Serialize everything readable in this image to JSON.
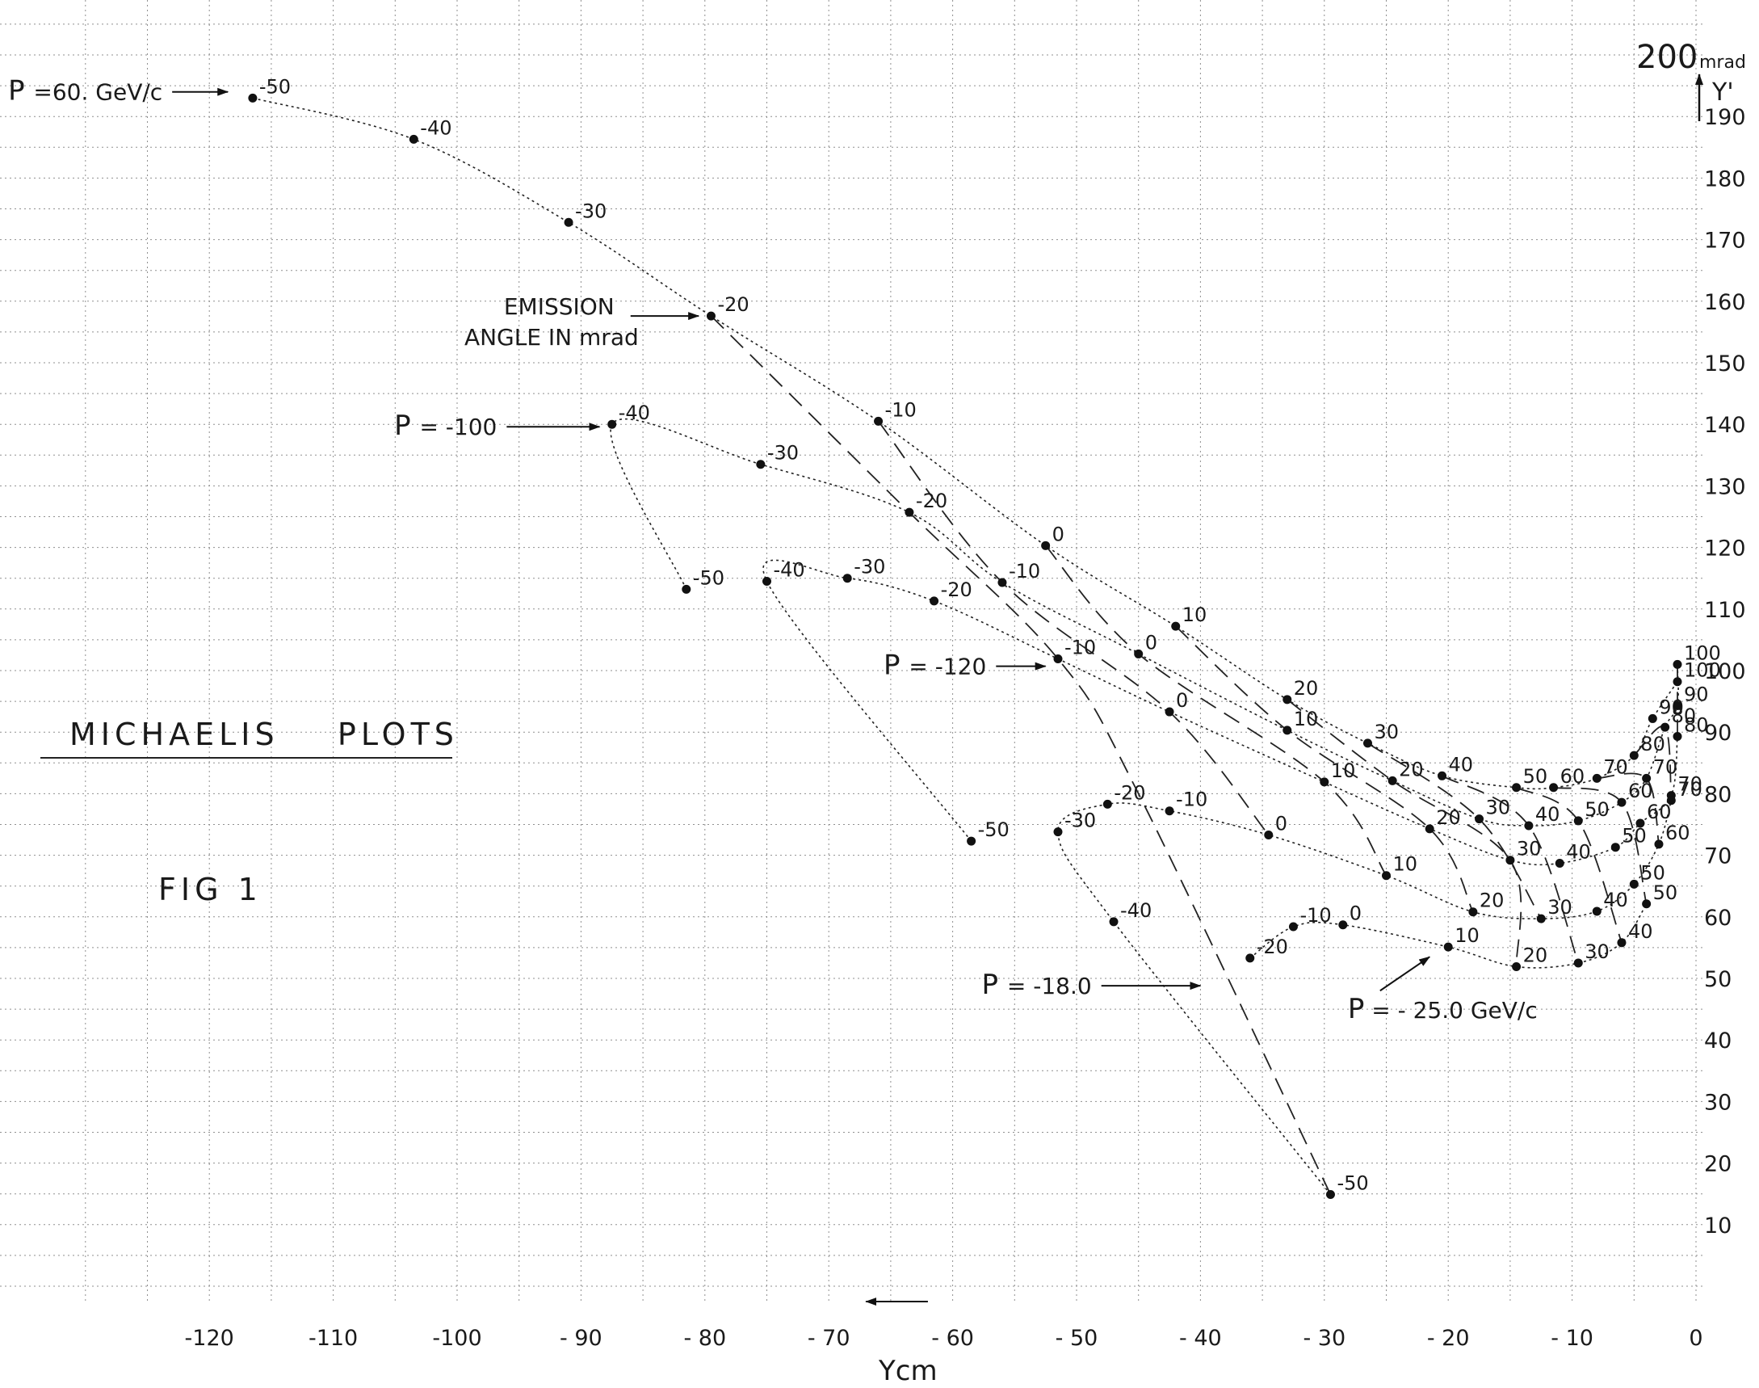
{
  "chart_data": {
    "type": "line",
    "title": "MICHAELIS    PLOTS",
    "subtitle": "FIG 1",
    "xlabel": "Ycm",
    "ylabel": "Y'",
    "y_top_label": "200",
    "y_unit_label": "mrad",
    "xlim": [
      -130,
      0
    ],
    "ylim": [
      0,
      200
    ],
    "x_ticks": [
      -120,
      -110,
      -100,
      -90,
      -80,
      -70,
      -60,
      -50,
      -40,
      -30,
      -20,
      -10,
      0
    ],
    "x_tick_labels": [
      "-120",
      "-110",
      "-100",
      "- 90",
      "- 80",
      "- 70",
      "- 60",
      "- 50",
      "- 40",
      "- 30",
      "- 20",
      "- 10",
      "0"
    ],
    "y_ticks": [
      10,
      20,
      30,
      40,
      50,
      60,
      70,
      80,
      90,
      100,
      110,
      120,
      130,
      140,
      150,
      160,
      170,
      180,
      190
    ],
    "y_tick_labels": [
      "10",
      "20",
      "30",
      "40",
      "50",
      "60",
      "70",
      "80",
      "90",
      "100",
      "110",
      "120",
      "130",
      "140",
      "150",
      "160",
      "170",
      "180",
      "190"
    ],
    "grid": true,
    "series": [
      {
        "name": "P =60. GeV/c",
        "style": "momentum",
        "points": [
          {
            "x": -116.5,
            "y": 193,
            "label": "-50"
          },
          {
            "x": -103.5,
            "y": 186.3,
            "label": "-40"
          },
          {
            "x": -91,
            "y": 172.8,
            "label": "-30"
          },
          {
            "x": -79.5,
            "y": 157.6,
            "label": "-20"
          },
          {
            "x": -66,
            "y": 140.5,
            "label": "-10"
          },
          {
            "x": -52.5,
            "y": 120.3,
            "label": "0"
          },
          {
            "x": -42,
            "y": 107.2,
            "label": "10"
          },
          {
            "x": -33,
            "y": 95.3,
            "label": "20"
          },
          {
            "x": -26.5,
            "y": 88.2,
            "label": "30"
          },
          {
            "x": -20.5,
            "y": 82.9,
            "label": "40"
          },
          {
            "x": -14.5,
            "y": 81,
            "label": "50"
          },
          {
            "x": -11.5,
            "y": 81,
            "label": "60"
          },
          {
            "x": -8,
            "y": 82.5,
            "label": "70"
          },
          {
            "x": -5,
            "y": 86.2,
            "label": "80"
          },
          {
            "x": -3.5,
            "y": 92.2,
            "label": "90"
          },
          {
            "x": -1.5,
            "y": 98.2,
            "label": "100"
          }
        ]
      },
      {
        "name": "P = -100",
        "style": "momentum",
        "points": [
          {
            "x": -81.5,
            "y": 113.2,
            "label": "-50"
          },
          {
            "x": -87.5,
            "y": 140,
            "label": "-40"
          },
          {
            "x": -75.5,
            "y": 133.5,
            "label": "-30"
          },
          {
            "x": -63.5,
            "y": 125.7,
            "label": "-20"
          },
          {
            "x": -56,
            "y": 114.3,
            "label": "-10"
          },
          {
            "x": -45,
            "y": 102.7,
            "label": "0"
          },
          {
            "x": -33,
            "y": 90.3,
            "label": "10"
          },
          {
            "x": -24.5,
            "y": 82.1,
            "label": "20"
          },
          {
            "x": -17.5,
            "y": 75.9,
            "label": "30"
          },
          {
            "x": -13.5,
            "y": 74.8,
            "label": "40"
          },
          {
            "x": -9.5,
            "y": 75.6,
            "label": "50"
          },
          {
            "x": -6,
            "y": 78.6,
            "label": "60"
          },
          {
            "x": -4,
            "y": 82.5,
            "label": "70"
          },
          {
            "x": -2.5,
            "y": 90.8,
            "label": "80"
          },
          {
            "x": -1.5,
            "y": 94.3,
            "label": "90"
          },
          {
            "x": -1.5,
            "y": 101,
            "label": "100"
          }
        ]
      },
      {
        "name": "P = -120",
        "style": "momentum",
        "points": [
          {
            "x": -58.5,
            "y": 72.3,
            "label": "-50"
          },
          {
            "x": -75,
            "y": 114.5,
            "label": "-40"
          },
          {
            "x": -68.5,
            "y": 115,
            "label": "-30"
          },
          {
            "x": -61.5,
            "y": 111.3,
            "label": "-20"
          },
          {
            "x": -51.5,
            "y": 101.9,
            "label": "-10"
          },
          {
            "x": -42.5,
            "y": 93.3,
            "label": "0"
          },
          {
            "x": -30,
            "y": 81.9,
            "label": "10"
          },
          {
            "x": -21.5,
            "y": 74.3,
            "label": "20"
          },
          {
            "x": -15,
            "y": 69.2,
            "label": "30"
          },
          {
            "x": -11,
            "y": 68.7,
            "label": "40"
          },
          {
            "x": -6.5,
            "y": 71.3,
            "label": "50"
          },
          {
            "x": -4.5,
            "y": 75.2,
            "label": "60"
          },
          {
            "x": -2,
            "y": 79.7,
            "label": "70"
          },
          {
            "x": -1.5,
            "y": 89.3,
            "label": "80"
          }
        ]
      },
      {
        "name": "P = -18.0",
        "style": "momentum",
        "points": [
          {
            "x": -29.5,
            "y": 14.9,
            "label": "-50"
          },
          {
            "x": -47,
            "y": 59.2,
            "label": "-40"
          },
          {
            "x": -51.5,
            "y": 73.8,
            "label": "-30"
          },
          {
            "x": -47.5,
            "y": 78.3,
            "label": "-20"
          },
          {
            "x": -42.5,
            "y": 77.2,
            "label": "-10"
          },
          {
            "x": -34.5,
            "y": 73.3,
            "label": "0"
          },
          {
            "x": -25,
            "y": 66.7,
            "label": "10"
          },
          {
            "x": -18,
            "y": 60.8,
            "label": "20"
          },
          {
            "x": -12.5,
            "y": 59.7,
            "label": "30"
          },
          {
            "x": -8,
            "y": 60.9,
            "label": "40"
          },
          {
            "x": -5,
            "y": 65.3,
            "label": "50"
          },
          {
            "x": -3,
            "y": 71.8,
            "label": "60"
          },
          {
            "x": -2,
            "y": 78.9,
            "label": "70"
          }
        ]
      },
      {
        "name": "P = - 25.0 GeV/c",
        "style": "momentum",
        "points": [
          {
            "x": -36,
            "y": 53.3,
            "label": "-20"
          },
          {
            "x": -32.5,
            "y": 58.4,
            "label": "-10"
          },
          {
            "x": -28.5,
            "y": 58.7,
            "label": "0"
          },
          {
            "x": -20,
            "y": 55.1,
            "label": "10"
          },
          {
            "x": -14.5,
            "y": 51.9,
            "label": "20"
          },
          {
            "x": -9.5,
            "y": 52.5,
            "label": "30"
          },
          {
            "x": -6,
            "y": 55.8,
            "label": "40"
          },
          {
            "x": -4,
            "y": 62.1,
            "label": "50"
          }
        ]
      },
      {
        "name": "emission -20",
        "style": "emission",
        "points": [
          {
            "x": -79.5,
            "y": 157.6
          },
          {
            "x": -63.5,
            "y": 125.7
          },
          {
            "x": -51.5,
            "y": 101.9
          },
          {
            "x": -45,
            "y": 80
          },
          {
            "x": -29.5,
            "y": 14.9
          }
        ]
      },
      {
        "name": "emission -10",
        "style": "emission",
        "points": [
          {
            "x": -66,
            "y": 140.5
          },
          {
            "x": -56,
            "y": 114.3
          },
          {
            "x": -42.5,
            "y": 93.3
          },
          {
            "x": -34.5,
            "y": 73.3
          }
        ]
      },
      {
        "name": "emission 0",
        "style": "emission",
        "points": [
          {
            "x": -52.5,
            "y": 120.3
          },
          {
            "x": -45,
            "y": 102.7
          },
          {
            "x": -30,
            "y": 81.9
          },
          {
            "x": -25,
            "y": 66.7
          }
        ]
      },
      {
        "name": "emission 10",
        "style": "emission",
        "points": [
          {
            "x": -42,
            "y": 107.2
          },
          {
            "x": -33,
            "y": 90.3
          },
          {
            "x": -21.5,
            "y": 74.3
          },
          {
            "x": -18,
            "y": 60.8
          }
        ]
      },
      {
        "name": "emission 20",
        "style": "emission",
        "points": [
          {
            "x": -33,
            "y": 95.3
          },
          {
            "x": -24.5,
            "y": 82.1
          },
          {
            "x": -15,
            "y": 69.2
          },
          {
            "x": -14.5,
            "y": 51.9
          }
        ]
      },
      {
        "name": "emission 30",
        "style": "emission",
        "points": [
          {
            "x": -26.5,
            "y": 88.2
          },
          {
            "x": -17.5,
            "y": 75.9
          },
          {
            "x": -12.5,
            "y": 59.7
          }
        ]
      },
      {
        "name": "emission 40",
        "style": "emission",
        "points": [
          {
            "x": -20.5,
            "y": 82.9
          },
          {
            "x": -13.5,
            "y": 74.8
          },
          {
            "x": -9.5,
            "y": 52.5
          }
        ]
      },
      {
        "name": "emission 50",
        "style": "emission",
        "points": [
          {
            "x": -14.5,
            "y": 81
          },
          {
            "x": -9.5,
            "y": 75.6
          },
          {
            "x": -6,
            "y": 55.8
          }
        ]
      },
      {
        "name": "emission 60",
        "style": "emission",
        "points": [
          {
            "x": -11.5,
            "y": 81
          },
          {
            "x": -6,
            "y": 78.6
          },
          {
            "x": -4,
            "y": 62.1
          }
        ]
      },
      {
        "name": "emission 70",
        "style": "emission",
        "points": [
          {
            "x": -8,
            "y": 82.5
          },
          {
            "x": -4,
            "y": 82.5
          },
          {
            "x": -3,
            "y": 71.8
          }
        ]
      },
      {
        "name": "emission 80",
        "style": "emission",
        "points": [
          {
            "x": -5,
            "y": 86.2
          },
          {
            "x": -2.5,
            "y": 90.8
          },
          {
            "x": -2,
            "y": 78.9
          }
        ]
      },
      {
        "name": "emission 100",
        "style": "emission",
        "points": [
          {
            "x": -1.5,
            "y": 101
          },
          {
            "x": -1.5,
            "y": 89.3
          }
        ]
      }
    ],
    "annotations": [
      {
        "text": "P",
        "text2": "=60. GeV/c",
        "arrow_to": {
          "x": -118.5,
          "y": 194
        },
        "arrow_from": {
          "x": -123,
          "y": 194
        }
      },
      {
        "text": "EMISSION",
        "text2": "ANGLE IN mrad",
        "arrow_to": {
          "x": -80.5,
          "y": 157.6
        },
        "arrow_from": {
          "x": -86,
          "y": 157.6
        }
      },
      {
        "text": "P",
        "text2": "= -100",
        "arrow_to": {
          "x": -88.5,
          "y": 139.6
        },
        "arrow_from": {
          "x": -96,
          "y": 139.6
        }
      },
      {
        "text": "P",
        "text2": "= -120",
        "arrow_to": {
          "x": -52.5,
          "y": 100.7
        },
        "arrow_from": {
          "x": -56.5,
          "y": 100.7
        }
      },
      {
        "text": "P",
        "text2": "= -18.0",
        "arrow_to": {
          "x": -40,
          "y": 48.8
        },
        "arrow_from": {
          "x": -48,
          "y": 48.8
        }
      },
      {
        "text": "P",
        "text2": "= - 25.0 GeV/c",
        "arrow_to": {
          "x": -21.5,
          "y": 53.5
        },
        "arrow_from": {
          "x": -25.5,
          "y": 48
        }
      },
      {
        "text": "",
        "text2": "",
        "arrow_to": {
          "x": -67,
          "y": -2.5
        },
        "arrow_from": {
          "x": -62,
          "y": -2.5
        }
      }
    ]
  }
}
